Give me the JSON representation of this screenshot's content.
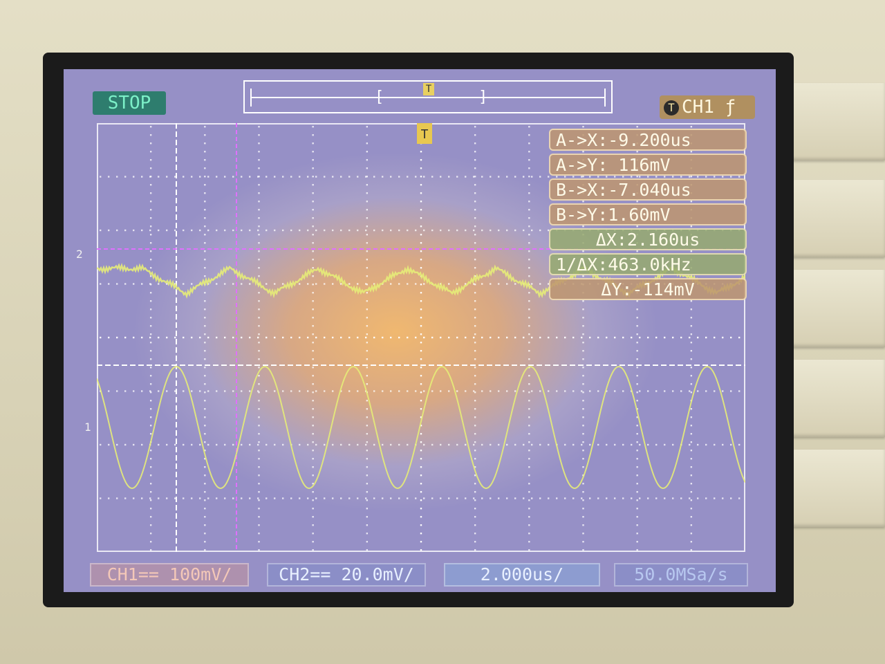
{
  "status": "STOP",
  "trigger": {
    "icon": "T",
    "channel_label": "CH1",
    "slope_symbol": "ƒ"
  },
  "memory_bar": {
    "trigger_marker": "T",
    "left_bracket": "[",
    "right_bracket": "]"
  },
  "waveform_markers": {
    "ch2": "2",
    "ch1": "1",
    "trigger": "T"
  },
  "measurements": [
    {
      "label": "A->X:-9.200us",
      "color": "tan"
    },
    {
      "label": "A->Y: 116mV",
      "color": "tan"
    },
    {
      "label": "B->X:-7.040us",
      "color": "tan"
    },
    {
      "label": "B->Y:1.60mV",
      "color": "tan"
    },
    {
      "label": "ΔX:2.160us",
      "color": "green"
    },
    {
      "label": "1/ΔX:463.0kHz",
      "color": "green"
    },
    {
      "label": "ΔY:-114mV",
      "color": "tan"
    }
  ],
  "bottom_bar": {
    "ch1_scale": "CH1== 100mV/",
    "ch2_scale": "CH2== 20.0mV/",
    "time_scale": "2.000us/",
    "sample_rate": "50.0MSa/s"
  },
  "colors": {
    "trace": "#e6ec78",
    "grid": "#ffffff",
    "cursor": "#ffffff",
    "cursor_magenta": "#e070ff"
  }
}
